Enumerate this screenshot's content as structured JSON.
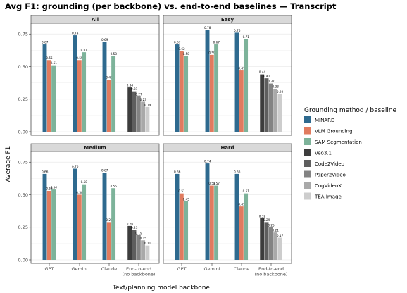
{
  "chart_data": {
    "type": "bar",
    "title": "Avg F1: grounding (per backbone) vs. end-to-end baselines — Transcript",
    "xlabel": "Text/planning model backbone",
    "ylabel": "Average F1",
    "ylim": [
      0,
      0.8
    ],
    "yticks": [
      "0.00",
      "0.25",
      "0.50",
      "0.75"
    ],
    "grid": true,
    "legend_title": "Grounding method / baseline",
    "legend_position": "right",
    "categories": [
      "GPT",
      "Gemini",
      "Claude",
      "End-to-end\n(no backbone)"
    ],
    "series": [
      {
        "name": "MINARD",
        "color": "#2e6a8f"
      },
      {
        "name": "VLM Grounding",
        "color": "#e07b5f"
      },
      {
        "name": "SAM Segmentation",
        "color": "#7db39a"
      },
      {
        "name": "Veo3.1",
        "color": "#3d3d3d"
      },
      {
        "name": "Code2Video",
        "color": "#5e5e5e"
      },
      {
        "name": "Paper2Video",
        "color": "#838383"
      },
      {
        "name": "CogVideoX",
        "color": "#a9a9a9"
      },
      {
        "name": "TEA-Image",
        "color": "#cdcdcd"
      }
    ],
    "panels": [
      {
        "name": "All",
        "groups": [
          {
            "category": "GPT",
            "bars": [
              {
                "series": 0,
                "value": 0.67
              },
              {
                "series": 1,
                "value": 0.55
              },
              {
                "series": 2,
                "value": 0.51
              }
            ]
          },
          {
            "category": "Gemini",
            "bars": [
              {
                "series": 0,
                "value": 0.74
              },
              {
                "series": 1,
                "value": 0.55
              },
              {
                "series": 2,
                "value": 0.61
              }
            ]
          },
          {
            "category": "Claude",
            "bars": [
              {
                "series": 0,
                "value": 0.69
              },
              {
                "series": 1,
                "value": 0.4
              },
              {
                "series": 2,
                "value": 0.58
              }
            ]
          },
          {
            "category": "End-to-end\n(no backbone)",
            "bars": [
              {
                "series": 3,
                "value": 0.34
              },
              {
                "series": 4,
                "value": 0.31
              },
              {
                "series": 5,
                "value": 0.27
              },
              {
                "series": 6,
                "value": 0.23
              },
              {
                "series": 7,
                "value": 0.19
              }
            ]
          }
        ]
      },
      {
        "name": "Easy",
        "groups": [
          {
            "category": "GPT",
            "bars": [
              {
                "series": 0,
                "value": 0.67
              },
              {
                "series": 1,
                "value": 0.62
              },
              {
                "series": 2,
                "value": 0.58
              }
            ]
          },
          {
            "category": "Gemini",
            "bars": [
              {
                "series": 0,
                "value": 0.78
              },
              {
                "series": 1,
                "value": 0.59
              },
              {
                "series": 2,
                "value": 0.67
              }
            ]
          },
          {
            "category": "Claude",
            "bars": [
              {
                "series": 0,
                "value": 0.76
              },
              {
                "series": 1,
                "value": 0.47
              },
              {
                "series": 2,
                "value": 0.71
              }
            ]
          },
          {
            "category": "End-to-end\n(no backbone)",
            "bars": [
              {
                "series": 3,
                "value": 0.44
              },
              {
                "series": 4,
                "value": 0.41
              },
              {
                "series": 5,
                "value": 0.37
              },
              {
                "series": 6,
                "value": 0.33
              },
              {
                "series": 7,
                "value": 0.29
              }
            ]
          }
        ]
      },
      {
        "name": "Medium",
        "groups": [
          {
            "category": "GPT",
            "bars": [
              {
                "series": 0,
                "value": 0.66
              },
              {
                "series": 1,
                "value": 0.53
              },
              {
                "series": 2,
                "value": 0.54
              }
            ]
          },
          {
            "category": "Gemini",
            "bars": [
              {
                "series": 0,
                "value": 0.7
              },
              {
                "series": 1,
                "value": 0.5
              },
              {
                "series": 2,
                "value": 0.58
              }
            ]
          },
          {
            "category": "Claude",
            "bars": [
              {
                "series": 0,
                "value": 0.67
              },
              {
                "series": 1,
                "value": 0.29
              },
              {
                "series": 2,
                "value": 0.55
              }
            ]
          },
          {
            "category": "End-to-end\n(no backbone)",
            "bars": [
              {
                "series": 3,
                "value": 0.26
              },
              {
                "series": 4,
                "value": 0.23
              },
              {
                "series": 5,
                "value": 0.19
              },
              {
                "series": 6,
                "value": 0.15
              },
              {
                "series": 7,
                "value": 0.11
              }
            ]
          }
        ]
      },
      {
        "name": "Hard",
        "groups": [
          {
            "category": "GPT",
            "bars": [
              {
                "series": 0,
                "value": 0.66
              },
              {
                "series": 1,
                "value": 0.51
              },
              {
                "series": 2,
                "value": 0.45
              }
            ]
          },
          {
            "category": "Gemini",
            "bars": [
              {
                "series": 0,
                "value": 0.74
              },
              {
                "series": 1,
                "value": 0.57
              },
              {
                "series": 2,
                "value": 0.57
              }
            ]
          },
          {
            "category": "Claude",
            "bars": [
              {
                "series": 0,
                "value": 0.66
              },
              {
                "series": 1,
                "value": 0.41
              },
              {
                "series": 2,
                "value": 0.51
              }
            ]
          },
          {
            "category": "End-to-end\n(no backbone)",
            "bars": [
              {
                "series": 3,
                "value": 0.32
              },
              {
                "series": 4,
                "value": 0.29
              },
              {
                "series": 5,
                "value": 0.25
              },
              {
                "series": 6,
                "value": 0.21
              },
              {
                "series": 7,
                "value": 0.17
              }
            ]
          }
        ]
      }
    ]
  }
}
